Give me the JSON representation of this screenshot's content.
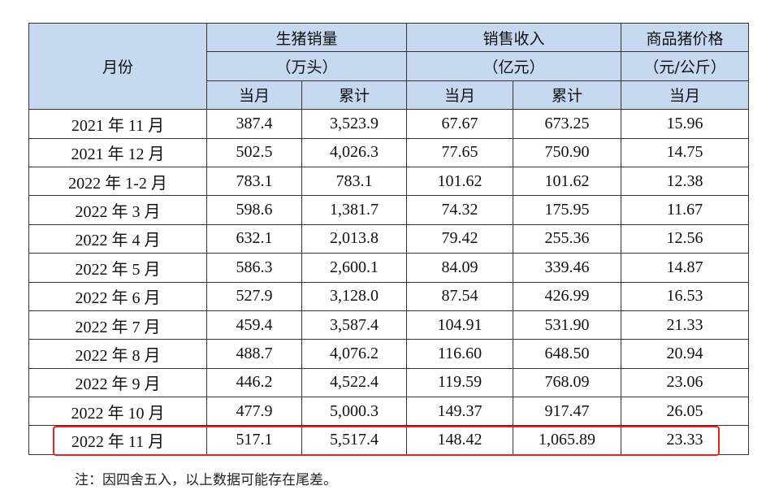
{
  "header": {
    "month": "月份",
    "groups": [
      {
        "title": "生猪销量",
        "unit": "（万头）"
      },
      {
        "title": "销售收入",
        "unit": "（亿元）"
      },
      {
        "title": "商品猪价格",
        "unit": "（元/公斤）"
      }
    ],
    "sub": [
      "当月",
      "累计",
      "当月",
      "累计",
      "当月"
    ]
  },
  "rows": [
    [
      "2021 年 11 月",
      "387.4",
      "3,523.9",
      "67.67",
      "673.25",
      "15.96"
    ],
    [
      "2021 年 12 月",
      "502.5",
      "4,026.3",
      "77.65",
      "750.90",
      "14.75"
    ],
    [
      "2022 年 1-2 月",
      "783.1",
      "783.1",
      "101.62",
      "101.62",
      "12.38"
    ],
    [
      "2022 年 3 月",
      "598.6",
      "1,381.7",
      "74.32",
      "175.95",
      "11.67"
    ],
    [
      "2022 年 4 月",
      "632.1",
      "2,013.8",
      "79.42",
      "255.36",
      "12.56"
    ],
    [
      "2022 年 5 月",
      "586.3",
      "2,600.1",
      "84.09",
      "339.46",
      "14.87"
    ],
    [
      "2022 年 6 月",
      "527.9",
      "3,128.0",
      "87.54",
      "426.99",
      "16.53"
    ],
    [
      "2022 年 7 月",
      "459.4",
      "3,587.4",
      "104.91",
      "531.90",
      "21.33"
    ],
    [
      "2022 年 8 月",
      "488.7",
      "4,076.2",
      "116.60",
      "648.50",
      "20.94"
    ],
    [
      "2022 年 9 月",
      "446.2",
      "4,522.4",
      "119.59",
      "768.09",
      "23.06"
    ],
    [
      "2022 年 10 月",
      "477.9",
      "5,000.3",
      "149.37",
      "917.47",
      "26.05"
    ],
    [
      "2022 年 11 月",
      "517.1",
      "5,517.4",
      "148.42",
      "1,065.89",
      "23.33"
    ]
  ],
  "highlight_color": "#e8231f",
  "header_bg": "#c6d9f1",
  "note": "注：因四舍五入，以上数据可能存在尾差。"
}
